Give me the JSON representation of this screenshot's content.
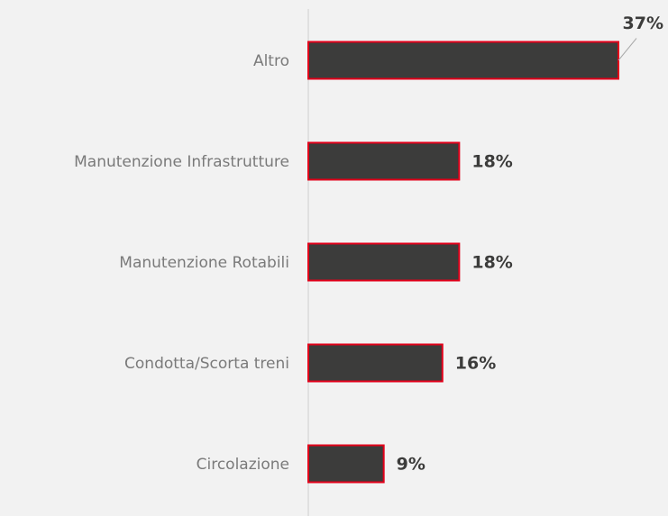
{
  "chart_data": {
    "type": "bar",
    "orientation": "horizontal",
    "categories": [
      "Altro",
      "Manutenzione Infrastrutture",
      "Manutenzione Rotabili",
      "Condotta/Scorta treni",
      "Circolazione"
    ],
    "values": [
      37,
      18,
      18,
      16,
      9
    ],
    "value_labels": [
      "37%",
      "18%",
      "18%",
      "16%",
      "9%"
    ],
    "color": "#3c3c3b",
    "edge_color": "#e2001a"
  }
}
